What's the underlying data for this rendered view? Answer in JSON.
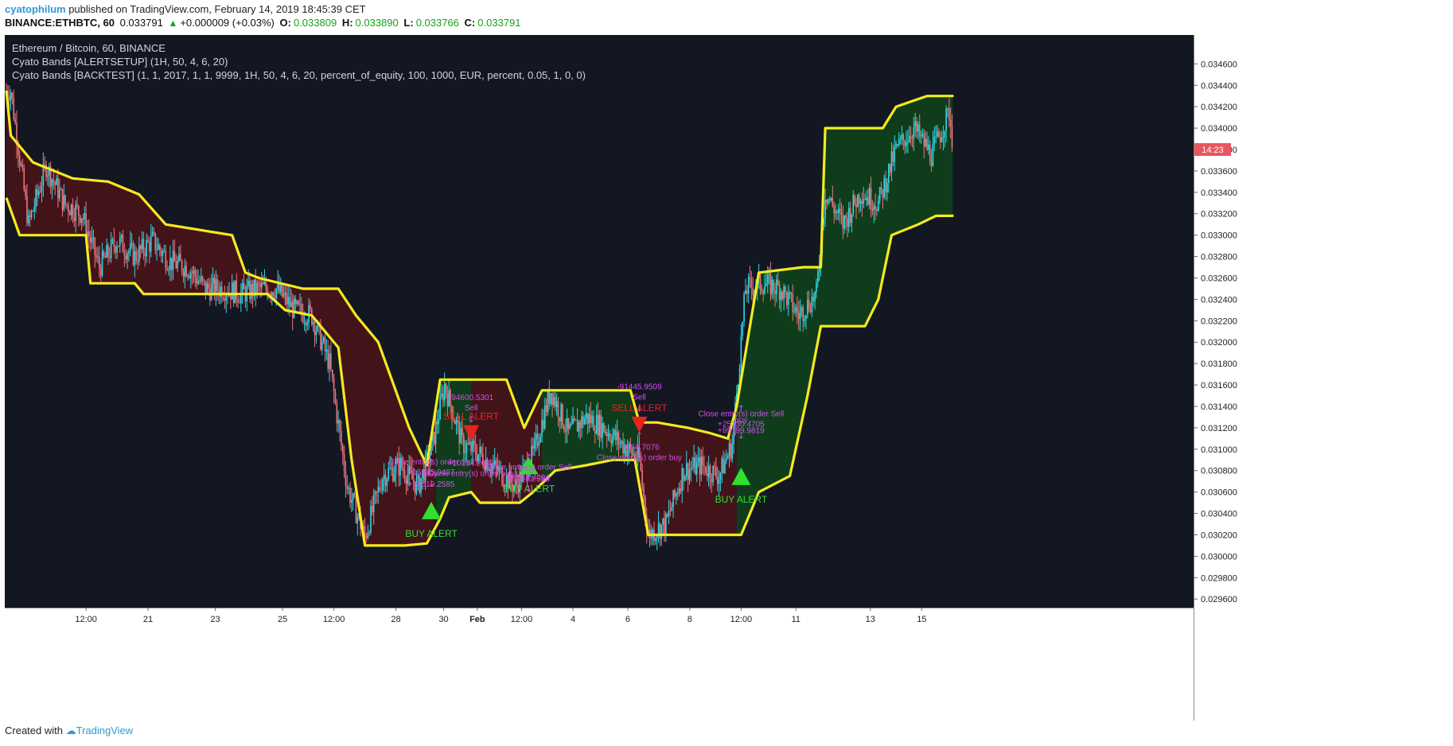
{
  "header": {
    "publisher": "cyatophilum",
    "published_text": "published on TradingView.com, February 14, 2019 18:45:39 CET"
  },
  "symbol_bar": {
    "symbol": "BINANCE:ETHBTC, 60",
    "price": "0.033791",
    "change": "+0.000009 (+0.03%)",
    "o_label": "O:",
    "o_value": "0.033809",
    "h_label": "H:",
    "h_value": "0.033890",
    "l_label": "L:",
    "l_value": "0.033766",
    "c_label": "C:",
    "c_value": "0.033791"
  },
  "legend": {
    "line1": "Ethereum / Bitcoin, 60, BINANCE",
    "line2": "Cyato Bands [ALERTSETUP] (1H, 50, 4, 6, 20)",
    "line3": "Cyato Bands [BACKTEST] (1, 1, 2017, 1, 1, 9999, 1H, 50, 4, 6, 20, percent_of_equity, 100, 1000, EUR, percent, 0.05, 1, 0, 0)"
  },
  "footer": {
    "created_with": "Created with",
    "brand": "TradingView"
  },
  "colors": {
    "background": "#131722",
    "bull_fill": "#0f3d1c",
    "bear_fill": "#42141a",
    "band_yellow": "#f6ea1e",
    "band_red": "#e32323",
    "band_white": "#eeeeee",
    "band_green": "#27e827",
    "candle_up": "#2ed8e6",
    "candle_down": "#e8747c",
    "buy_alert": "#2fe02f",
    "sell_alert": "#e82323",
    "order_text": "#d04fe8",
    "price_tag": "#e8575f"
  },
  "chart_data": {
    "type": "candlestick",
    "title": "Ethereum / Bitcoin, 60, BINANCE",
    "y_range": [
      0.02952,
      0.03487
    ],
    "y_ticks": [
      "0.034600",
      "0.034400",
      "0.034200",
      "0.034000",
      "0.033800",
      "0.033600",
      "0.033400",
      "0.033200",
      "0.033000",
      "0.032800",
      "0.032600",
      "0.032400",
      "0.032200",
      "0.032000",
      "0.031800",
      "0.031600",
      "0.031400",
      "0.031200",
      "0.031000",
      "0.030800",
      "0.030600",
      "0.030400",
      "0.030200",
      "0.030000",
      "0.029800",
      "0.029600"
    ],
    "x_ticks": [
      "12:00",
      "21",
      "23",
      "25",
      "12:00",
      "28",
      "30",
      "Feb",
      "12:00",
      "4",
      "6",
      "8",
      "12:00",
      "11",
      "13",
      "15"
    ],
    "last_price_label": "14:23",
    "last_price": 0.0338,
    "price_path": [
      [
        "Jan 19 03:00",
        0.03435
      ],
      [
        "Jan 19 15:00",
        0.0331
      ],
      [
        "Jan 20 03:00",
        0.03365
      ],
      [
        "Jan 20 15:00",
        0.0333
      ],
      [
        "Jan 21 03:00",
        0.0332
      ],
      [
        "Jan 21 15:00",
        0.0327
      ],
      [
        "Jan 22 03:00",
        0.03295
      ],
      [
        "Jan 22 15:00",
        0.0328
      ],
      [
        "Jan 23 03:00",
        0.03295
      ],
      [
        "Jan 23 15:00",
        0.03275
      ],
      [
        "Jan 24 03:00",
        0.0327
      ],
      [
        "Jan 24 15:00",
        0.0325
      ],
      [
        "Jan 25 03:00",
        0.0325
      ],
      [
        "Jan 25 15:00",
        0.03245
      ],
      [
        "Jan 26 03:00",
        0.0325
      ],
      [
        "Jan 26 15:00",
        0.0325
      ],
      [
        "Jan 27 03:00",
        0.0323
      ],
      [
        "Jan 27 15:00",
        0.03225
      ],
      [
        "Jan 28 03:00",
        0.0318
      ],
      [
        "Jan 28 15:00",
        0.03065
      ],
      [
        "Jan 29 03:00",
        0.03018
      ],
      [
        "Jan 29 15:00",
        0.03075
      ],
      [
        "Jan 30 03:00",
        0.03085
      ],
      [
        "Jan 30 15:00",
        0.03065
      ],
      [
        "Jan 31 00:00",
        0.031
      ],
      [
        "Jan 31 09:00",
        0.0316
      ],
      [
        "Jan 31 21:00",
        0.03105
      ],
      [
        "Feb 1 09:00",
        0.03095
      ],
      [
        "Feb 1 21:00",
        0.0308
      ],
      [
        "Feb 2 09:00",
        0.03065
      ],
      [
        "Feb 2 21:00",
        0.03095
      ],
      [
        "Feb 3 09:00",
        0.03155
      ],
      [
        "Feb 3 21:00",
        0.03115
      ],
      [
        "Feb 4 09:00",
        0.0313
      ],
      [
        "Feb 4 21:00",
        0.0312
      ],
      [
        "Feb 5 09:00",
        0.03105
      ],
      [
        "Feb 5 21:00",
        0.0309
      ],
      [
        "Feb 6 03:00",
        0.0302
      ],
      [
        "Feb 6 15:00",
        0.0303
      ],
      [
        "Feb 7 03:00",
        0.0308
      ],
      [
        "Feb 7 15:00",
        0.03085
      ],
      [
        "Feb 8 03:00",
        0.03075
      ],
      [
        "Feb 8 12:00",
        0.03105
      ],
      [
        "Feb 8 21:00",
        0.0325
      ],
      [
        "Feb 9 09:00",
        0.03255
      ],
      [
        "Feb 9 21:00",
        0.0325
      ],
      [
        "Feb 10 09:00",
        0.03225
      ],
      [
        "Feb 10 21:00",
        0.03245
      ],
      [
        "Feb 11 03:00",
        0.0334
      ],
      [
        "Feb 11 15:00",
        0.0331
      ],
      [
        "Feb 12 03:00",
        0.0334
      ],
      [
        "Feb 12 15:00",
        0.0333
      ],
      [
        "Feb 13 03:00",
        0.0338
      ],
      [
        "Feb 13 15:00",
        0.034
      ],
      [
        "Feb 14 03:00",
        0.03375
      ],
      [
        "Feb 14 15:00",
        0.03415
      ],
      [
        "Feb 14 18:00",
        0.0338
      ]
    ],
    "upper_band": [
      [
        "Jan 19 00:00",
        0.03435
      ],
      [
        "Jan 19 03:00",
        0.03393
      ],
      [
        "Jan 19 18:00",
        0.03368
      ],
      [
        "Jan 20 21:00",
        0.03353
      ],
      [
        "Jan 21 21:00",
        0.0335
      ],
      [
        "Jan 22 18:00",
        0.03338
      ],
      [
        "Jan 23 12:00",
        0.0331
      ],
      [
        "Jan 25 09:00",
        0.033
      ],
      [
        "Jan 25 18:00",
        0.03265
      ],
      [
        "Jan 26 03:00",
        0.0326
      ],
      [
        "Jan 27 09:00",
        0.0325
      ],
      [
        "Jan 28 09:00",
        0.0325
      ],
      [
        "Jan 28 21:00",
        0.03225
      ],
      [
        "Jan 29 12:00",
        0.032
      ],
      [
        "Jan 30 09:00",
        0.0312
      ],
      [
        "Jan 30 21:00",
        0.03085
      ],
      [
        "Jan 31 06:00",
        0.03165
      ],
      [
        "Feb 1 03:00",
        0.03165
      ],
      [
        "Feb 2 03:00",
        0.03165
      ],
      [
        "Feb 2 15:00",
        0.0312
      ],
      [
        "Feb 3 03:00",
        0.03155
      ],
      [
        "Feb 4 12:00",
        0.03155
      ],
      [
        "Feb 5 15:00",
        0.03155
      ],
      [
        "Feb 5 21:00",
        0.03125
      ],
      [
        "Feb 6 09:00",
        0.03125
      ],
      [
        "Feb 7 06:00",
        0.0312
      ],
      [
        "Feb 7 21:00",
        0.03115
      ],
      [
        "Feb 8 09:00",
        0.0311
      ],
      [
        "Feb 8 15:00",
        0.0314
      ],
      [
        "Feb 9 06:00",
        0.03265
      ],
      [
        "Feb 10 12:00",
        0.0327
      ],
      [
        "Feb 11 00:00",
        0.0327
      ],
      [
        "Feb 11 03:00",
        0.034
      ],
      [
        "Feb 12 18:00",
        0.034
      ],
      [
        "Feb 13 03:00",
        0.0342
      ],
      [
        "Feb 14 00:00",
        0.0343
      ],
      [
        "Feb 14 18:00",
        0.0343
      ]
    ],
    "lower_band": [
      [
        "Jan 19 00:00",
        0.03335
      ],
      [
        "Jan 19 09:00",
        0.033
      ],
      [
        "Jan 21 06:00",
        0.033
      ],
      [
        "Jan 21 09:00",
        0.03255
      ],
      [
        "Jan 22 15:00",
        0.03255
      ],
      [
        "Jan 22 21:00",
        0.03245
      ],
      [
        "Jan 26 09:00",
        0.03245
      ],
      [
        "Jan 26 21:00",
        0.0323
      ],
      [
        "Jan 27 15:00",
        0.03225
      ],
      [
        "Jan 28 09:00",
        0.03195
      ],
      [
        "Jan 28 18:00",
        0.0309
      ],
      [
        "Jan 29 03:00",
        0.0301
      ],
      [
        "Jan 30 06:00",
        0.0301
      ],
      [
        "Jan 30 21:00",
        0.03012
      ],
      [
        "Jan 31 06:00",
        0.03035
      ],
      [
        "Jan 31 12:00",
        0.03055
      ],
      [
        "Feb 1 03:00",
        0.0306
      ],
      [
        "Feb 1 09:00",
        0.0305
      ],
      [
        "Feb 2 12:00",
        0.0305
      ],
      [
        "Feb 2 21:00",
        0.0306
      ],
      [
        "Feb 3 12:00",
        0.0308
      ],
      [
        "Feb 4 09:00",
        0.03085
      ],
      [
        "Feb 5 03:00",
        0.0309
      ],
      [
        "Feb 5 18:00",
        0.0309
      ],
      [
        "Feb 6 03:00",
        0.0302
      ],
      [
        "Feb 7 06:00",
        0.0302
      ],
      [
        "Feb 8 09:00",
        0.0302
      ],
      [
        "Feb 8 18:00",
        0.0302
      ],
      [
        "Feb 9 06:00",
        0.0306
      ],
      [
        "Feb 10 03:00",
        0.03075
      ],
      [
        "Feb 10 15:00",
        0.0315
      ],
      [
        "Feb 11 00:00",
        0.03215
      ],
      [
        "Feb 12 06:00",
        0.03215
      ],
      [
        "Feb 12 15:00",
        0.0324
      ],
      [
        "Feb 13 00:00",
        0.033
      ],
      [
        "Feb 13 18:00",
        0.0331
      ],
      [
        "Feb 14 06:00",
        0.03318
      ],
      [
        "Feb 14 18:00",
        0.03318
      ]
    ],
    "zones": [
      {
        "from": "Jan 19 00:00",
        "to": "Jan 31 03:00",
        "trend": "bearish"
      },
      {
        "from": "Jan 31 03:00",
        "to": "Feb 1 03:00",
        "trend": "bullish"
      },
      {
        "from": "Feb 1 03:00",
        "to": "Feb 3 03:00",
        "trend": "bearish"
      },
      {
        "from": "Feb 3 03:00",
        "to": "Feb 5 21:00",
        "trend": "bullish"
      },
      {
        "from": "Feb 5 21:00",
        "to": "Feb 8 15:00",
        "trend": "bearish"
      },
      {
        "from": "Feb 8 15:00",
        "to": "Feb 14 18:00",
        "trend": "bullish"
      }
    ],
    "alerts": [
      {
        "type": "buy",
        "label": "BUY ALERT",
        "time": "Jan 31 00:00",
        "price": 0.03042
      },
      {
        "type": "sell",
        "label": "SELL ALERT",
        "time": "Feb 1 03:00",
        "price": 0.03115
      },
      {
        "type": "buy",
        "label": "BUY ALERT",
        "time": "Feb 2 18:00",
        "price": 0.03084
      },
      {
        "type": "sell",
        "label": "SELL ALERT",
        "time": "Feb 5 21:00",
        "price": 0.03123
      },
      {
        "type": "buy",
        "label": "BUY ALERT",
        "time": "Feb 8 18:00",
        "price": 0.03074
      }
    ],
    "orders": [
      {
        "time": "Jan 31 00:00",
        "price": 0.03085,
        "lines": [
          "buy",
          "+94619.2585"
        ],
        "dir": "up"
      },
      {
        "time": "Jan 31 00:00",
        "price": 0.03065,
        "lines": [
          "Close entry(s) order Sell",
          "+15085.0497"
        ],
        "dir": "down"
      },
      {
        "time": "Feb 1 03:00",
        "price": 0.03125,
        "lines": [
          "-94600.5301",
          "Sell"
        ],
        "dir": "down"
      },
      {
        "time": "Feb 1 03:00",
        "price": 0.03095,
        "lines": [
          "+10134.2083",
          "Close entry(s) order buy"
        ],
        "dir": "up"
      },
      {
        "time": "Feb 2 18:00",
        "price": 0.0309,
        "lines": [
          "buy",
          "+94183.588"
        ],
        "dir": "up"
      },
      {
        "time": "Feb 2 18:00",
        "price": 0.0306,
        "lines": [
          "Close entry(s) order Sell",
          "+9583.4094"
        ],
        "dir": "down"
      },
      {
        "time": "Feb 5 21:00",
        "price": 0.03135,
        "lines": [
          "-91445.9509",
          "Sell"
        ],
        "dir": "down"
      },
      {
        "time": "Feb 5 21:00",
        "price": 0.0311,
        "lines": [
          "-2056.7076",
          "Close entry(s) order buy"
        ],
        "dir": "up"
      },
      {
        "time": "Feb 8 18:00",
        "price": 0.03135,
        "lines": [
          "buy",
          "+89199.9819"
        ],
        "dir": "up"
      },
      {
        "time": "Feb 8 18:00",
        "price": 0.0311,
        "lines": [
          "Close entry(s) order Sell",
          "+25330.4705"
        ],
        "dir": "down"
      }
    ]
  }
}
